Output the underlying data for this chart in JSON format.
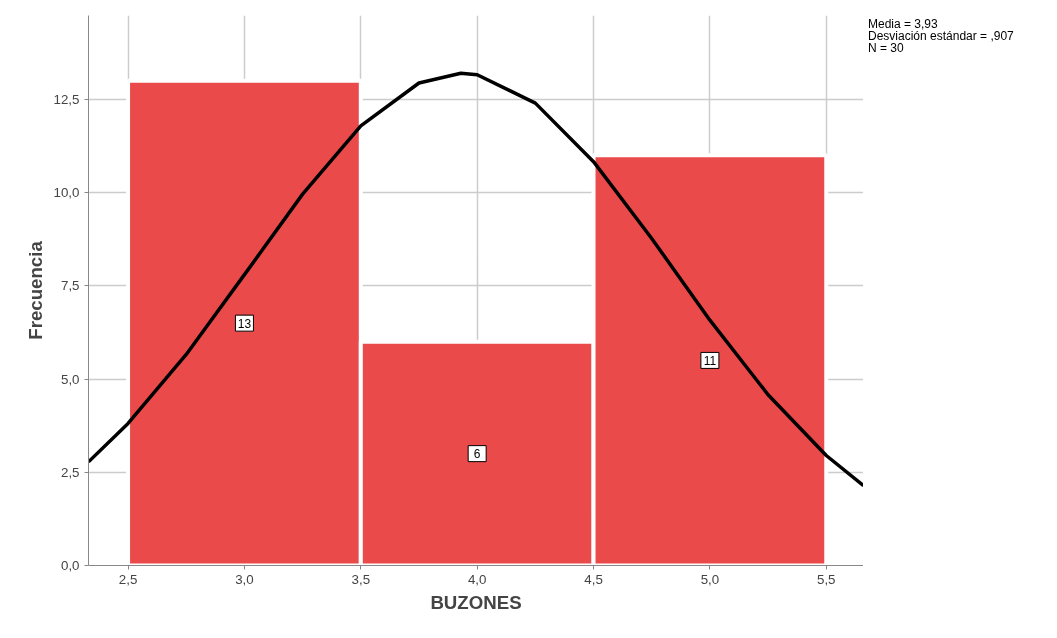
{
  "chart_data": {
    "type": "histogram",
    "xlabel": "BUZONES",
    "ylabel": "Frecuencia",
    "bins": [
      2.5,
      3.5,
      4.5,
      5.5
    ],
    "values": [
      13,
      6,
      11
    ],
    "color": "#eb4a4b",
    "value_labels": [
      "13",
      "6",
      "11"
    ],
    "series": [
      {
        "type": "line",
        "color": "#000000",
        "x": [
          2.33,
          2.5,
          2.75,
          3.0,
          3.25,
          3.5,
          3.75,
          3.93,
          4.0,
          4.25,
          4.5,
          4.75,
          5.0,
          5.25,
          5.5,
          5.66
        ],
        "values": [
          2.78,
          3.81,
          5.66,
          7.8,
          9.96,
          11.79,
          12.94,
          13.2,
          13.16,
          12.4,
          10.83,
          8.77,
          6.58,
          4.58,
          2.95,
          2.14
        ]
      }
    ],
    "annotations": [
      "Media = 3,93",
      "Desviación estándar = ,907",
      "N = 30"
    ],
    "xlim": [
      2.33,
      5.66
    ],
    "ylim": [
      0,
      14.75
    ],
    "xticks": [
      {
        "value": 2.5,
        "label": "2,5"
      },
      {
        "value": 3.0,
        "label": "3,0"
      },
      {
        "value": 3.5,
        "label": "3,5"
      },
      {
        "value": 4.0,
        "label": "4,0"
      },
      {
        "value": 4.5,
        "label": "4,5"
      },
      {
        "value": 5.0,
        "label": "5,0"
      },
      {
        "value": 5.5,
        "label": "5,5"
      }
    ],
    "yticks": [
      {
        "value": 0,
        "label": "0,0"
      },
      {
        "value": 2.5,
        "label": "2,5"
      },
      {
        "value": 5.0,
        "label": "5,0"
      },
      {
        "value": 7.5,
        "label": "7,5"
      },
      {
        "value": 10.0,
        "label": "10,0"
      },
      {
        "value": 12.5,
        "label": "12,5"
      }
    ],
    "grid": true,
    "marker": "none"
  }
}
